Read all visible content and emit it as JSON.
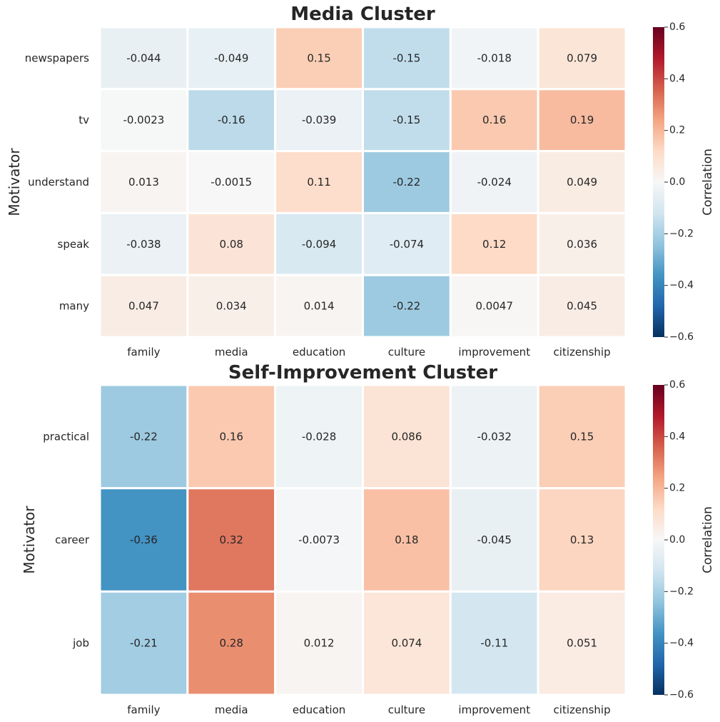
{
  "chart_data": [
    {
      "type": "heatmap",
      "title": "Media Cluster",
      "ylabel": "Motivator",
      "xlabel": "",
      "x_categories": [
        "family",
        "media",
        "education",
        "culture",
        "improvement",
        "citizenship"
      ],
      "y_categories": [
        "newspapers",
        "tv",
        "understand",
        "speak",
        "many"
      ],
      "values": [
        [
          -0.044,
          -0.049,
          0.15,
          -0.15,
          -0.018,
          0.079
        ],
        [
          -0.0023,
          -0.16,
          -0.039,
          -0.15,
          0.16,
          0.19
        ],
        [
          0.013,
          -0.0015,
          0.11,
          -0.22,
          -0.024,
          0.049
        ],
        [
          -0.038,
          0.08,
          -0.094,
          -0.074,
          0.12,
          0.036
        ],
        [
          0.047,
          0.034,
          0.014,
          -0.22,
          0.0047,
          0.045
        ]
      ],
      "cell_labels": [
        [
          "-0.044",
          "-0.049",
          "0.15",
          "-0.15",
          "-0.018",
          "0.079"
        ],
        [
          "-0.0023",
          "-0.16",
          "-0.039",
          "-0.15",
          "0.16",
          "0.19"
        ],
        [
          "0.013",
          "-0.0015",
          "0.11",
          "-0.22",
          "-0.024",
          "0.049"
        ],
        [
          "-0.038",
          "0.08",
          "-0.094",
          "-0.074",
          "0.12",
          "0.036"
        ],
        [
          "0.047",
          "0.034",
          "0.014",
          "-0.22",
          "0.0047",
          "0.045"
        ]
      ],
      "colorbar": {
        "label": "Correlation",
        "range": [
          -0.6,
          0.6
        ],
        "ticks": [
          0.6,
          0.4,
          0.2,
          0.0,
          -0.2,
          -0.4,
          -0.6
        ],
        "tick_labels": [
          "0.6",
          "0.4",
          "0.2",
          "0.0",
          "−0.2",
          "−0.4",
          "−0.6"
        ],
        "colormap": "RdBu_r"
      }
    },
    {
      "type": "heatmap",
      "title": "Self-Improvement Cluster",
      "ylabel": "Motivator",
      "xlabel": "",
      "x_categories": [
        "family",
        "media",
        "education",
        "culture",
        "improvement",
        "citizenship"
      ],
      "y_categories": [
        "practical",
        "career",
        "job"
      ],
      "values": [
        [
          -0.22,
          0.16,
          -0.028,
          0.086,
          -0.032,
          0.15
        ],
        [
          -0.36,
          0.32,
          -0.0073,
          0.18,
          -0.045,
          0.13
        ],
        [
          -0.21,
          0.28,
          0.012,
          0.074,
          -0.11,
          0.051
        ]
      ],
      "cell_labels": [
        [
          "-0.22",
          "0.16",
          "-0.028",
          "0.086",
          "-0.032",
          "0.15"
        ],
        [
          "-0.36",
          "0.32",
          "-0.0073",
          "0.18",
          "-0.045",
          "0.13"
        ],
        [
          "-0.21",
          "0.28",
          "0.012",
          "0.074",
          "-0.11",
          "0.051"
        ]
      ],
      "colorbar": {
        "label": "Correlation",
        "range": [
          -0.6,
          0.6
        ],
        "ticks": [
          0.6,
          0.4,
          0.2,
          0.0,
          -0.2,
          -0.4,
          -0.6
        ],
        "tick_labels": [
          "0.6",
          "0.4",
          "0.2",
          "0.0",
          "−0.2",
          "−0.4",
          "−0.6"
        ],
        "colormap": "RdBu_r"
      }
    }
  ],
  "colors": {
    "cell_border": "#ffffff",
    "text_dark": "#262626",
    "text_light": "#ffffff",
    "colormap_stops": [
      "#053061",
      "#2166ac",
      "#4393c3",
      "#92c5de",
      "#d1e5f0",
      "#f7f7f7",
      "#fddbc7",
      "#f4a582",
      "#d6604d",
      "#b2182b",
      "#67001f"
    ]
  }
}
